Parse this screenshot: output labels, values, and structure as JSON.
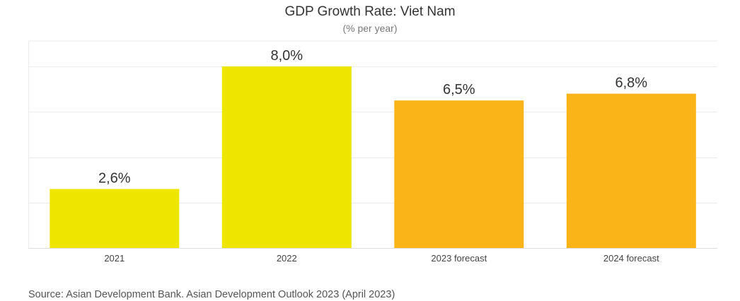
{
  "title": "GDP Growth Rate: Viet Nam",
  "subtitle": "(% per year)",
  "source": "Source: Asian Development Bank. Asian Development Outlook 2023 (April 2023)",
  "colors": {
    "actual": "#efe600",
    "forecast": "#fbb418",
    "grid": "#ececec",
    "axis": "#dddddd",
    "label": "#333333"
  },
  "chart_data": {
    "type": "bar",
    "title": "GDP Growth Rate: Viet Nam",
    "subtitle": "(% per year)",
    "categories": [
      "2021",
      "2022",
      "2023 forecast",
      "2024 forecast"
    ],
    "values": [
      2.6,
      8.0,
      6.5,
      6.8
    ],
    "data_labels": [
      "2,6%",
      "8,0%",
      "6,5%",
      "6,8%"
    ],
    "bar_colors": [
      "#efe600",
      "#efe600",
      "#fbb418",
      "#fbb418"
    ],
    "ylim": [
      0,
      8
    ],
    "grid_values": [
      2,
      4,
      6,
      8
    ],
    "grid": true,
    "y_tick_labels_shown": false,
    "legend": false
  }
}
